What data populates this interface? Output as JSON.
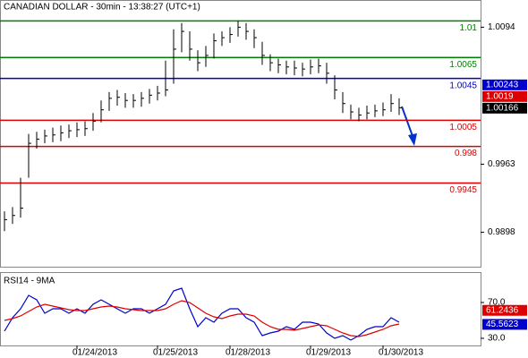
{
  "chart_data": [
    {
      "type": "hlc",
      "title": "CANADIAN DOLLAR - 30min - 13:38:27 (UTC+1)",
      "color": "#000000",
      "categories": [
        null,
        null,
        null,
        null,
        null,
        null,
        null,
        null,
        null,
        "01/24/2013",
        null,
        null,
        null,
        null,
        null,
        null,
        null,
        null,
        null,
        "01/25/2013",
        null,
        null,
        null,
        null,
        null,
        null,
        null,
        null,
        "01/28/2013",
        null,
        null,
        null,
        null,
        null,
        null,
        null,
        null,
        null,
        "01/29/2013",
        null,
        null,
        null,
        null,
        null,
        null,
        null,
        null,
        "01/30/2013",
        null,
        null
      ],
      "close": [
        0.991,
        0.9914,
        0.9921,
        0.9983,
        0.9987,
        0.999,
        0.9991,
        0.9993,
        0.9995,
        0.9996,
        0.9997,
        1.0004,
        1.0015,
        1.0026,
        1.0027,
        1.0024,
        1.0024,
        1.0026,
        1.0029,
        1.0031,
        1.0034,
        1.0073,
        1.009,
        1.0073,
        1.006,
        1.0067,
        1.0081,
        1.0084,
        1.0087,
        1.0094,
        1.009,
        1.0084,
        1.0067,
        1.006,
        1.0058,
        1.0056,
        1.0055,
        1.0054,
        1.0056,
        1.0057,
        1.005,
        1.0034,
        1.0021,
        1.0013,
        1.001,
        1.0012,
        1.0014,
        1.0015,
        1.0021,
        1.0017
      ],
      "high": [
        0.9918,
        0.9922,
        0.995,
        0.9992,
        0.9994,
        0.9996,
        0.9998,
        1.0,
        1.0001,
        1.0003,
        1.0004,
        1.0012,
        1.0024,
        1.0032,
        1.0034,
        1.0031,
        1.003,
        1.0032,
        1.0035,
        1.0038,
        1.0062,
        1.0092,
        1.0098,
        1.009,
        1.0072,
        1.0076,
        1.0088,
        1.009,
        1.0094,
        1.01,
        1.0098,
        1.0092,
        1.008,
        1.0068,
        1.0064,
        1.0062,
        1.0062,
        1.006,
        1.0063,
        1.0064,
        1.006,
        1.0048,
        1.0032,
        1.002,
        1.0017,
        1.0019,
        1.002,
        1.0022,
        1.003,
        1.0026
      ],
      "low": [
        0.9899,
        0.9906,
        0.9912,
        0.995,
        0.9978,
        0.9983,
        0.9984,
        0.9985,
        0.9988,
        0.9989,
        0.999,
        0.9995,
        1.0003,
        1.0014,
        1.0019,
        1.0017,
        1.0017,
        1.0018,
        1.0021,
        1.0024,
        1.0028,
        1.004,
        1.007,
        1.0062,
        1.0052,
        1.0056,
        1.0064,
        1.0076,
        1.0079,
        1.0085,
        1.0082,
        1.0074,
        1.0058,
        1.0052,
        1.005,
        1.0049,
        1.0048,
        1.0047,
        1.0049,
        1.005,
        1.004,
        1.0025,
        1.0012,
        1.0006,
        1.0004,
        1.0006,
        1.0008,
        1.0009,
        1.0013,
        1.001
      ],
      "ylim": [
        0.9865,
        1.012
      ],
      "yticks": [
        1.0094,
        0.9963,
        0.9898
      ],
      "levels": [
        {
          "value": 1.01,
          "color": "#008000"
        },
        {
          "value": 1.0065,
          "color": "#008000"
        },
        {
          "value": 1.0045,
          "color": "#0000cc"
        },
        {
          "value": 1.0005,
          "color": "#dd0000"
        },
        {
          "value": 0.998,
          "color": "#dd0000"
        },
        {
          "value": 0.9945,
          "color": "#dd0000"
        }
      ],
      "value_boxes": [
        {
          "value": 1.00243,
          "color": "#0000cc"
        },
        {
          "value": 1.0019,
          "color": "#dd0000"
        },
        {
          "value": 1.00166,
          "color": "#000000"
        }
      ]
    },
    {
      "type": "line",
      "title": "RSI14 - 9MA",
      "series": [
        {
          "color": "#0000cc",
          "values": [
            38,
            53,
            63,
            78,
            73,
            58,
            63,
            63,
            58,
            63,
            58,
            68,
            73,
            68,
            63,
            58,
            63,
            63,
            58,
            63,
            68,
            83,
            86,
            63,
            43,
            53,
            48,
            58,
            63,
            63,
            53,
            48,
            33,
            36,
            38,
            43,
            40,
            48,
            48,
            46,
            36,
            30,
            33,
            28,
            33,
            40,
            43,
            43,
            53,
            48
          ]
        },
        {
          "color": "#dd0000",
          "values": [
            50,
            52,
            55,
            60,
            65,
            68,
            66,
            64,
            62,
            61,
            61,
            63,
            65,
            66,
            65,
            63,
            62,
            61,
            61,
            61,
            63,
            68,
            72,
            70,
            64,
            58,
            54,
            52,
            55,
            57,
            57,
            55,
            48,
            43,
            40,
            40,
            39,
            41,
            43,
            45,
            44,
            40,
            36,
            33,
            32,
            34,
            37,
            40,
            44,
            46
          ]
        }
      ],
      "ylim": [
        22,
        103
      ],
      "yticks": [
        {
          "value": 70,
          "label": "70.0"
        },
        {
          "value": 30,
          "label": "30.0"
        }
      ],
      "value_boxes": [
        {
          "value": 61.2436,
          "color": "#dd0000"
        },
        {
          "value": 45.5623,
          "color": "#0000cc"
        }
      ]
    }
  ]
}
